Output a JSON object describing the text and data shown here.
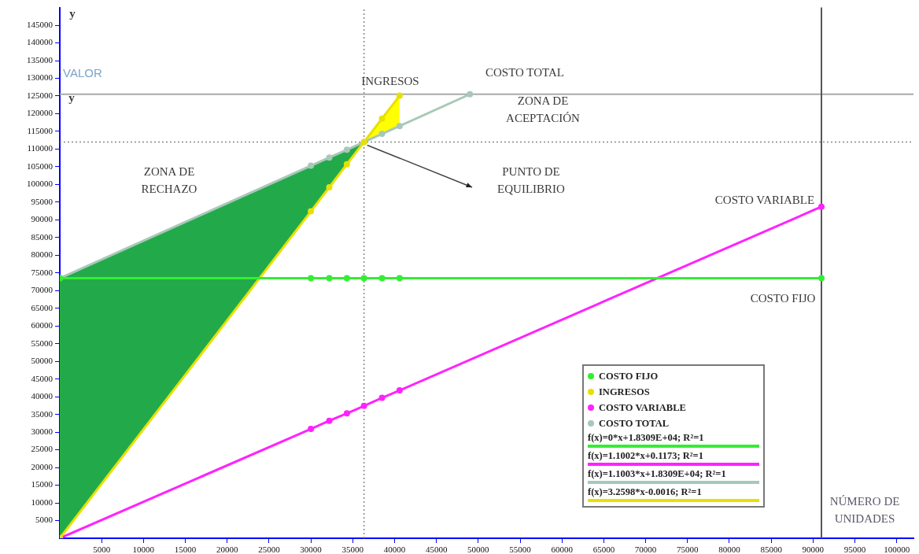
{
  "chart_data": {
    "type": "line",
    "xlabel": "NÚMERO DE UNIDADES",
    "ylabel": "VALOR",
    "xlim": [
      0,
      102000
    ],
    "ylim": [
      0,
      150000
    ],
    "xticks": [
      5000,
      10000,
      15000,
      20000,
      25000,
      30000,
      35000,
      40000,
      45000,
      50000,
      55000,
      60000,
      65000,
      70000,
      75000,
      80000,
      85000,
      90000,
      95000,
      100000
    ],
    "yticks": [
      5000,
      10000,
      15000,
      20000,
      25000,
      30000,
      35000,
      40000,
      45000,
      50000,
      55000,
      60000,
      65000,
      70000,
      75000,
      80000,
      85000,
      90000,
      95000,
      100000,
      105000,
      110000,
      115000,
      120000,
      125000,
      130000,
      135000,
      140000,
      145000
    ],
    "series": [
      {
        "name": "COSTO FIJO",
        "color": "#33ee33",
        "x": [
          0,
          30000,
          32200,
          34300,
          36350,
          38500,
          40600,
          91000
        ],
        "values": [
          73500,
          73500,
          73500,
          73500,
          73500,
          73500,
          73500,
          73500
        ]
      },
      {
        "name": "INGRESOS",
        "color": "#e8e000",
        "x": [
          0,
          30000,
          32200,
          34300,
          36350,
          38500,
          40600
        ],
        "values": [
          0,
          92400,
          99200,
          105700,
          112000,
          118600,
          125100
        ]
      },
      {
        "name": "COSTO VARIABLE",
        "color": "#ff22ff",
        "x": [
          0,
          30000,
          32200,
          34300,
          36350,
          38500,
          40600,
          91000
        ],
        "values": [
          0,
          30900,
          33200,
          35300,
          37400,
          39700,
          41800,
          93700
        ]
      },
      {
        "name": "COSTO TOTAL",
        "color": "#a8c8b8",
        "x": [
          0,
          30000,
          32200,
          34300,
          36350,
          38500,
          40600,
          49000
        ],
        "values": [
          73500,
          105300,
          107600,
          109800,
          112000,
          114300,
          116500,
          125500
        ]
      }
    ],
    "ref_lines": [
      {
        "axis": "x",
        "value": 36350,
        "color": "#888888",
        "line_style": "dotted"
      },
      {
        "axis": "y",
        "value": 112000,
        "color": "#888888",
        "line_style": "dotted"
      },
      {
        "axis": "y",
        "value": 125500,
        "color": "#aaaaaa",
        "line_style": "solid"
      },
      {
        "axis": "x",
        "value": 91000,
        "color": "#555555",
        "line_style": "solid"
      }
    ],
    "annotations": [
      "y",
      "y",
      "INGRESOS",
      "COSTO TOTAL",
      "ZONA DE\nACEPTACIÓN",
      "ZONA DE\nRECHAZO",
      "PUNTO DE\nEQUILIBRIO",
      "COSTO VARIABLE",
      "COSTO FIJO",
      "f(x)=0*x+1.8309E+04; R²=1",
      "f(x)=1.1002*x+0.1173; R²=1",
      "f(x)=1.1003*x+1.8309E+04; R²=1",
      "f(x)=3.2598*x-0.0016; R²=1"
    ],
    "legend": "bottom right",
    "marker": "circle"
  }
}
